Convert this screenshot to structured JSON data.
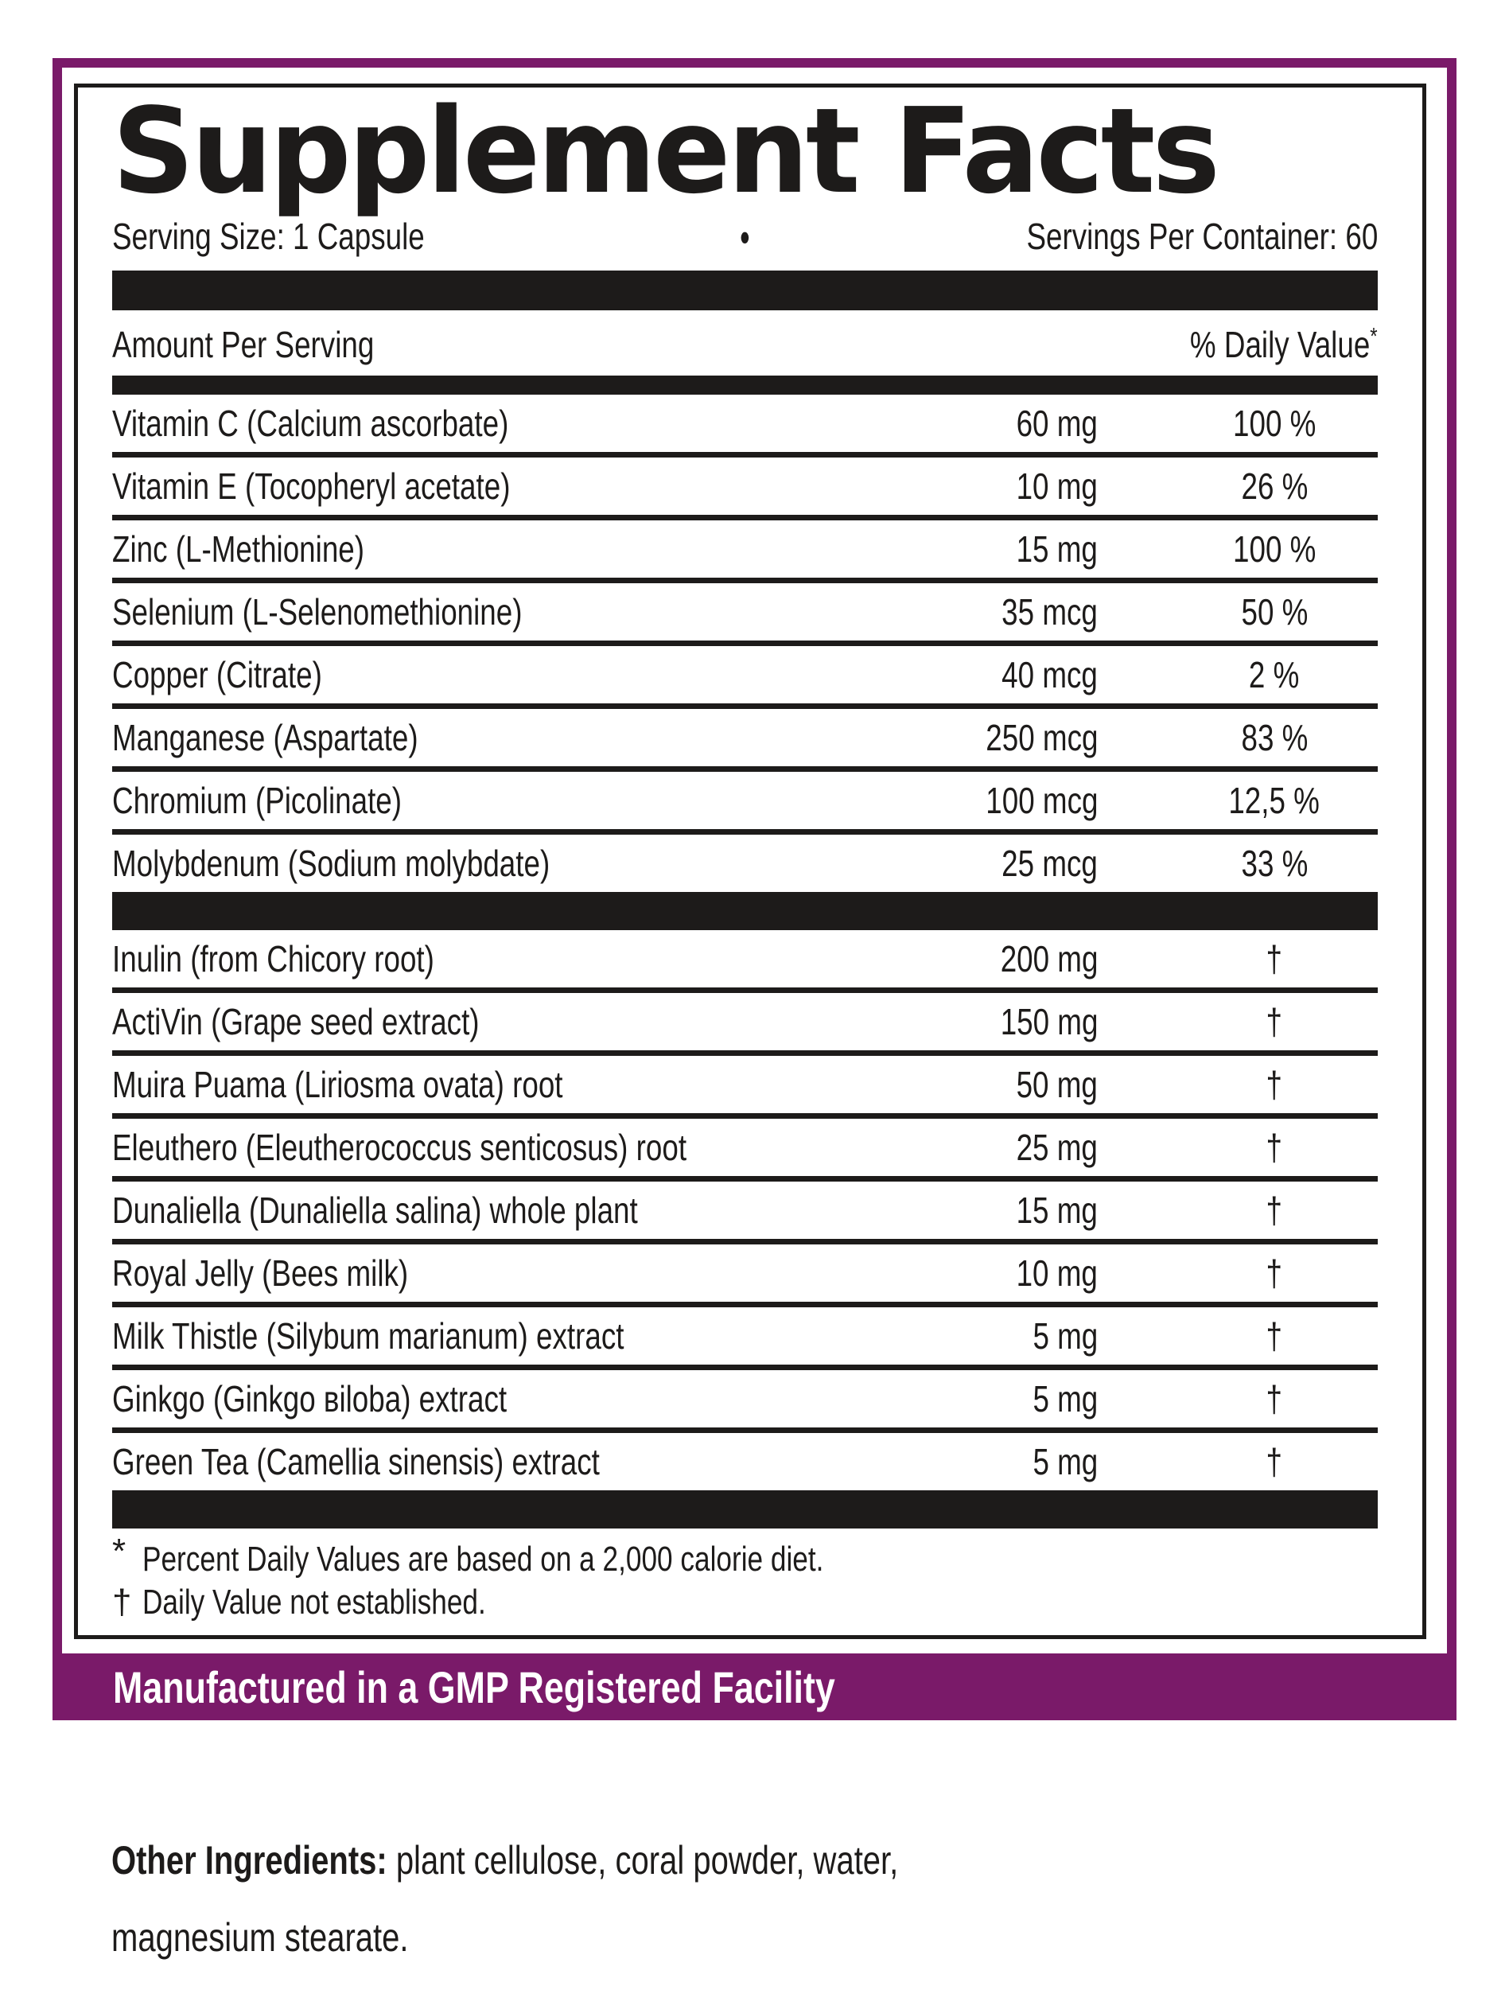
{
  "title": "Supplement Facts",
  "serving": {
    "size_label": "Serving Size: 1 Capsule",
    "bullet": "•",
    "per_container": "Servings Per Container: 60"
  },
  "table": {
    "header": {
      "amount": "Amount Per Serving",
      "dv": "% Daily Value",
      "dv_asterisk": "*"
    },
    "minerals": [
      {
        "name": "Vitamin C (Calcium ascorbate)",
        "amount": "60 mg",
        "dv": "100 %"
      },
      {
        "name": "Vitamin E (Tocopheryl acetate)",
        "amount": "10 mg",
        "dv": "26 %"
      },
      {
        "name": "Zinc (L-Methionine)",
        "amount": "15 mg",
        "dv": "100 %"
      },
      {
        "name": "Selenium (L-Selenomethionine)",
        "amount": "35 mcg",
        "dv": "50 %"
      },
      {
        "name": "Copper (Citrate)",
        "amount": "40 mcg",
        "dv": "2 %"
      },
      {
        "name": "Manganese (Aspartate)",
        "amount": "250 mcg",
        "dv": "83 %"
      },
      {
        "name": "Chromium (Picolinate)",
        "amount": "100 mcg",
        "dv": "12,5 %"
      },
      {
        "name": "Molybdenum (Sodium molybdate)",
        "amount": "25 mcg",
        "dv": "33 %"
      }
    ],
    "botanicals": [
      {
        "name": "Inulin (from Chicory root)",
        "amount": "200 mg",
        "dv": "†"
      },
      {
        "name": "ActiVin (Grape seed extract)",
        "amount": "150 mg",
        "dv": "†"
      },
      {
        "name": "Muira Puama (Liriosma ovata) root",
        "amount": "50 mg",
        "dv": "†"
      },
      {
        "name": "Eleuthero (Eleutherococcus senticosus) root",
        "amount": "25 mg",
        "dv": "†"
      },
      {
        "name": "Dunaliella (Dunaliella salina) whole plant",
        "amount": "15 mg",
        "dv": "†"
      },
      {
        "name": "Royal Jelly (Bees milk)",
        "amount": "10 mg",
        "dv": "†"
      },
      {
        "name": "Milk Thistle (Silybum marianum) extract",
        "amount": "5 mg",
        "dv": "†"
      },
      {
        "name": "Ginkgo (Ginkgo вiloba) extract",
        "amount": "5 mg",
        "dv": "†"
      },
      {
        "name": "Green Tea (Camellia sinensis) extract",
        "amount": "5 mg",
        "dv": "†"
      }
    ],
    "footnotes": [
      {
        "mark": "*",
        "text": "Percent Daily Values are based on a 2,000 calorie diet."
      },
      {
        "mark": "†",
        "text": "Daily Value not established."
      }
    ]
  },
  "gmp_banner": "Manufactured in a GMP Registered Facility",
  "other_ingredients": {
    "label": "Other Ingredients:",
    "rest": " plant cellulose, coral powder, water,",
    "line2": "magnesium stearate."
  },
  "colors": {
    "purple": "#7A1A69",
    "black": "#1D1B1A",
    "white": "#FFFFFF"
  }
}
